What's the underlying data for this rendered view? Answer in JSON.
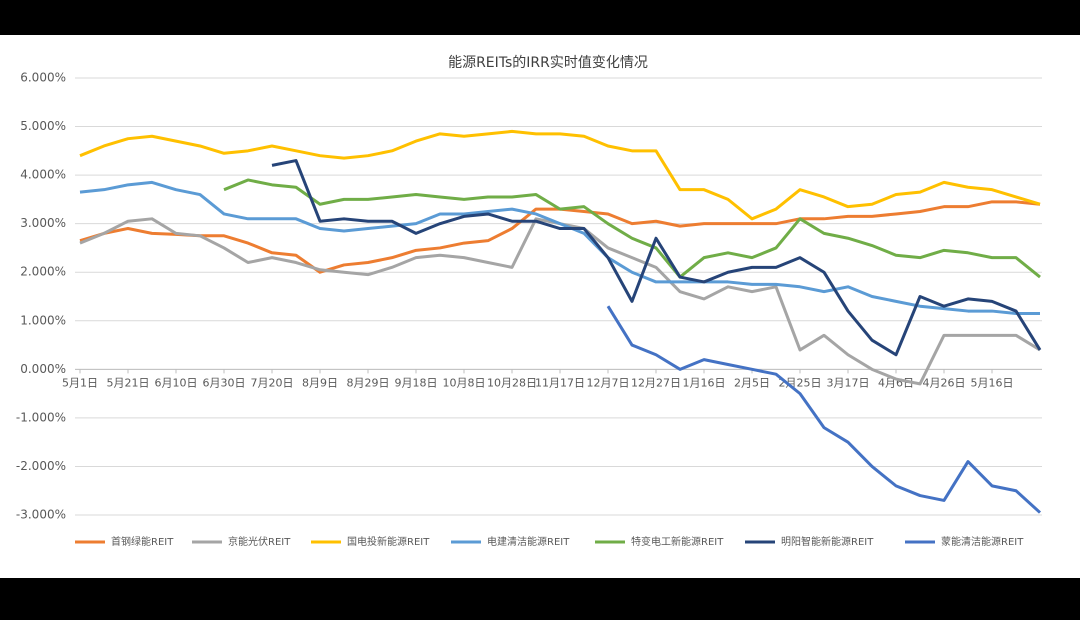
{
  "chart_data": {
    "type": "line",
    "title": "能源REITs的IRR实时值变化情况",
    "categories": [
      "5月1日",
      null,
      "5月21日",
      null,
      "6月10日",
      null,
      "6月30日",
      null,
      "7月20日",
      null,
      "8月9日",
      null,
      "8月29日",
      null,
      "9月18日",
      null,
      "10月8日",
      null,
      "10月28日",
      null,
      "11月17日",
      null,
      "12月7日",
      null,
      "12月27日",
      null,
      "1月16日",
      null,
      "2月5日",
      null,
      "2月25日",
      null,
      "3月17日",
      null,
      "4月6日",
      null,
      "4月26日",
      null,
      "5月16日",
      null,
      null
    ],
    "ylim": [
      -3,
      6
    ],
    "yticks": [
      {
        "value": -3,
        "label": "-3.000%"
      },
      {
        "value": -2,
        "label": "-2.000%"
      },
      {
        "value": -1,
        "label": "-1.000%"
      },
      {
        "value": 0,
        "label": "0.000%"
      },
      {
        "value": 1,
        "label": "1.000%"
      },
      {
        "value": 2,
        "label": "2.000%"
      },
      {
        "value": 3,
        "label": "3.000%"
      },
      {
        "value": 4,
        "label": "4.000%"
      },
      {
        "value": 5,
        "label": "5.000%"
      },
      {
        "value": 6,
        "label": "6.000%"
      }
    ],
    "grid": true,
    "legend": "bottom",
    "series": [
      {
        "name": "首钢绿能REIT",
        "color": "#ed7d31",
        "values": [
          2.65,
          2.8,
          2.9,
          2.8,
          2.78,
          2.75,
          2.75,
          2.6,
          2.4,
          2.35,
          2.0,
          2.15,
          2.2,
          2.3,
          2.45,
          2.5,
          2.6,
          2.65,
          2.9,
          3.3,
          3.3,
          3.25,
          3.2,
          3.0,
          3.05,
          2.95,
          3.0,
          3.0,
          3.0,
          3.0,
          3.1,
          3.1,
          3.15,
          3.15,
          3.2,
          3.25,
          3.35,
          3.35,
          3.45,
          3.45,
          3.4
        ]
      },
      {
        "name": "京能光伏REIT",
        "color": "#a5a5a5",
        "values": [
          2.6,
          2.8,
          3.05,
          3.1,
          2.8,
          2.75,
          2.5,
          2.2,
          2.3,
          2.2,
          2.05,
          2.0,
          1.95,
          2.1,
          2.3,
          2.35,
          2.3,
          2.2,
          2.1,
          3.1,
          3.0,
          2.9,
          2.5,
          2.3,
          2.1,
          1.6,
          1.45,
          1.7,
          1.6,
          1.7,
          0.4,
          0.7,
          0.3,
          0.0,
          -0.2,
          -0.3,
          0.7,
          0.7,
          0.7,
          0.7,
          0.4
        ]
      },
      {
        "name": "国电投新能源REIT",
        "color": "#ffc000",
        "values": [
          4.4,
          4.6,
          4.75,
          4.8,
          4.7,
          4.6,
          4.45,
          4.5,
          4.6,
          4.5,
          4.4,
          4.35,
          4.4,
          4.5,
          4.7,
          4.85,
          4.8,
          4.85,
          4.9,
          4.85,
          4.85,
          4.8,
          4.6,
          4.5,
          4.5,
          3.7,
          3.7,
          3.5,
          3.1,
          3.3,
          3.7,
          3.55,
          3.35,
          3.4,
          3.6,
          3.65,
          3.85,
          3.75,
          3.7,
          3.55,
          3.4
        ]
      },
      {
        "name": "电建清洁能源REIT",
        "color": "#5b9bd5",
        "values": [
          3.65,
          3.7,
          3.8,
          3.85,
          3.7,
          3.6,
          3.2,
          3.1,
          3.1,
          3.1,
          2.9,
          2.85,
          2.9,
          2.95,
          3.0,
          3.2,
          3.2,
          3.25,
          3.3,
          3.2,
          3.0,
          2.8,
          2.3,
          2.0,
          1.8,
          1.8,
          1.8,
          1.8,
          1.75,
          1.75,
          1.7,
          1.6,
          1.7,
          1.5,
          1.4,
          1.3,
          1.25,
          1.2,
          1.2,
          1.15,
          1.15
        ]
      },
      {
        "name": "特变电工新能源REIT",
        "color": "#70ad47",
        "values": [
          null,
          null,
          null,
          null,
          null,
          null,
          3.7,
          3.9,
          3.8,
          3.75,
          3.4,
          3.5,
          3.5,
          3.55,
          3.6,
          3.55,
          3.5,
          3.55,
          3.55,
          3.6,
          3.3,
          3.35,
          3.0,
          2.7,
          2.5,
          1.9,
          2.3,
          2.4,
          2.3,
          2.5,
          3.1,
          2.8,
          2.7,
          2.55,
          2.35,
          2.3,
          2.45,
          2.4,
          2.3,
          2.3,
          1.9
        ]
      },
      {
        "name": "明阳智能新能源REIT",
        "color": "#264478",
        "values": [
          null,
          null,
          null,
          null,
          null,
          null,
          null,
          null,
          4.2,
          4.3,
          3.05,
          3.1,
          3.05,
          3.05,
          2.8,
          3.0,
          3.15,
          3.2,
          3.05,
          3.05,
          2.9,
          2.9,
          2.3,
          1.4,
          2.7,
          1.9,
          1.8,
          2.0,
          2.1,
          2.1,
          2.3,
          2.0,
          1.2,
          0.6,
          0.3,
          1.5,
          1.3,
          1.45,
          1.4,
          1.2,
          0.4
        ]
      },
      {
        "name": "蒙能清洁能源REIT",
        "color": "#4472c4",
        "values": [
          null,
          null,
          null,
          null,
          null,
          null,
          null,
          null,
          null,
          null,
          null,
          null,
          null,
          null,
          null,
          null,
          null,
          null,
          null,
          null,
          null,
          null,
          1.3,
          0.5,
          0.3,
          0.0,
          0.2,
          0.1,
          0.0,
          -0.1,
          -0.5,
          -1.2,
          -1.5,
          -2.0,
          -2.4,
          -2.6,
          -2.7,
          -1.9,
          -2.4,
          -2.5,
          -2.95
        ]
      }
    ]
  }
}
